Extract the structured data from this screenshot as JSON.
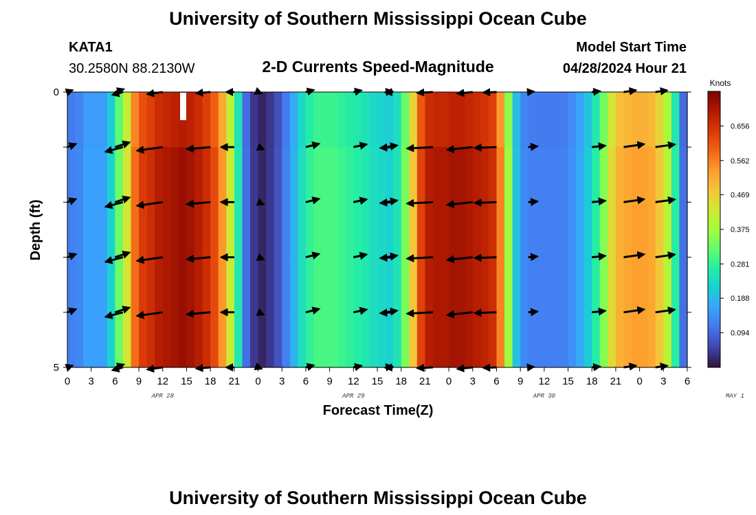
{
  "header": {
    "title": "University of Southern Mississippi Ocean Cube",
    "station": "KATA1",
    "coords": "30.2580N  88.2130W",
    "subtitle": "2-D Currents Speed-Magnitude",
    "model_label": "Model Start Time",
    "model_time": "04/28/2024 Hour 21"
  },
  "footer": {
    "title": "University of Southern Mississippi Ocean Cube"
  },
  "chart_data": {
    "type": "heatmap",
    "title": "2-D Currents Speed-Magnitude",
    "xlabel": "Forecast Time(Z)",
    "ylabel": "Depth (ft)",
    "xlim": [
      0,
      78
    ],
    "ylim": [
      0,
      5
    ],
    "x_tick_labels": [
      "0",
      "3",
      "6",
      "9",
      "12",
      "15",
      "18",
      "21",
      "0",
      "3",
      "6",
      "9",
      "12",
      "15",
      "18",
      "21",
      "0",
      "3",
      "6",
      "9",
      "12",
      "15",
      "18",
      "21",
      "0",
      "3",
      "6"
    ],
    "y_tick_labels": [
      "0",
      "5"
    ],
    "date_labels": [
      {
        "hour": 12,
        "label": "APR 28"
      },
      {
        "hour": 36,
        "label": "APR 29"
      },
      {
        "hour": 60,
        "label": "APR 30"
      },
      {
        "hour": 84,
        "label": "MAY 1"
      }
    ],
    "colorbar": {
      "unit": "Knots",
      "min": 0.0,
      "max": 0.75,
      "ticks": [
        0.094,
        0.188,
        0.281,
        0.375,
        0.469,
        0.562,
        0.656
      ],
      "colors": [
        "#30123b",
        "#4145ab",
        "#4675ed",
        "#39a2fc",
        "#1bcfd4",
        "#24eca6",
        "#61fc6c",
        "#a4fc3b",
        "#d1e834",
        "#f3c63a",
        "#fe9b2d",
        "#f36315",
        "#d93806",
        "#b11901",
        "#7a0403"
      ]
    },
    "hours": [
      0,
      1,
      2,
      3,
      4,
      5,
      6,
      7,
      8,
      9,
      10,
      11,
      12,
      13,
      14,
      15,
      16,
      17,
      18,
      19,
      20,
      21,
      22,
      23,
      24,
      25,
      26,
      27,
      28,
      29,
      30,
      31,
      32,
      33,
      34,
      35,
      36,
      37,
      38,
      39,
      40,
      41,
      42,
      43,
      44,
      45,
      46,
      47,
      48,
      49,
      50,
      51,
      52,
      53,
      54,
      55,
      56,
      57,
      58,
      59,
      60,
      61,
      62,
      63,
      64,
      65,
      66,
      67,
      68,
      69,
      70,
      71,
      72,
      73,
      74,
      75,
      76,
      77
    ],
    "speed_knots": [
      0.12,
      0.13,
      0.16,
      0.16,
      0.16,
      0.22,
      0.33,
      0.43,
      0.58,
      0.64,
      0.66,
      0.69,
      0.7,
      0.71,
      0.72,
      0.71,
      0.69,
      0.66,
      0.62,
      0.54,
      0.42,
      0.26,
      0.1,
      0.04,
      0.02,
      0.04,
      0.07,
      0.12,
      0.18,
      0.24,
      0.28,
      0.3,
      0.3,
      0.3,
      0.29,
      0.28,
      0.27,
      0.26,
      0.24,
      0.23,
      0.22,
      0.25,
      0.34,
      0.48,
      0.63,
      0.69,
      0.7,
      0.7,
      0.71,
      0.71,
      0.7,
      0.69,
      0.68,
      0.66,
      0.56,
      0.37,
      0.2,
      0.13,
      0.12,
      0.12,
      0.12,
      0.12,
      0.12,
      0.14,
      0.17,
      0.21,
      0.27,
      0.35,
      0.45,
      0.51,
      0.52,
      0.53,
      0.53,
      0.52,
      0.48,
      0.4,
      0.27,
      0.1
    ],
    "depth_speed_factor": [
      0.96,
      1.0,
      1.0,
      1.0,
      1.0
    ],
    "vectors": [
      {
        "hour": 0,
        "deg": -20
      },
      {
        "hour": 6,
        "deg": -18
      },
      {
        "hour": 7,
        "deg": 165
      },
      {
        "hour": 12,
        "deg": 172
      },
      {
        "hour": 18,
        "deg": 175
      },
      {
        "hour": 21,
        "deg": 180
      },
      {
        "hour": 24,
        "deg": 22
      },
      {
        "hour": 30,
        "deg": -14
      },
      {
        "hour": 36,
        "deg": -12
      },
      {
        "hour": 40,
        "deg": -8
      },
      {
        "hour": 41,
        "deg": 176
      },
      {
        "hour": 46,
        "deg": 177
      },
      {
        "hour": 51,
        "deg": 174
      },
      {
        "hour": 54,
        "deg": 178
      },
      {
        "hour": 58,
        "deg": -5
      },
      {
        "hour": 66,
        "deg": -6
      },
      {
        "hour": 70,
        "deg": -8
      },
      {
        "hour": 74,
        "deg": -8
      }
    ]
  }
}
